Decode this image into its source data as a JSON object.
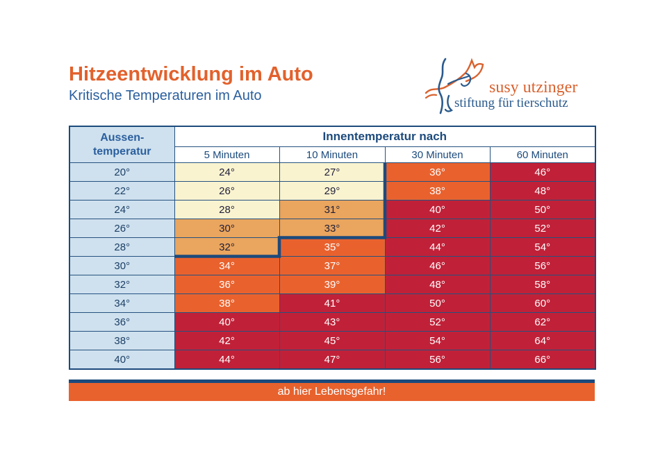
{
  "colors": {
    "accent_orange": "#e2612c",
    "brand_blue": "#2b5f9e",
    "navy_border": "#1c4a7c",
    "grid_line": "#24517f",
    "row_header_bg": "#cfe1ee",
    "level_cream": "#faf3d0",
    "level_tan": "#eaa55e",
    "level_orange": "#e9622e",
    "level_red": "#c02138",
    "danger_bar_bg": "#e8622d",
    "logo_orange": "#d8622f",
    "logo_blue": "#2a5a8c"
  },
  "header": {
    "title": "Hitzeentwicklung im Auto",
    "subtitle": "Kritische Temperaturen im Auto"
  },
  "logo": {
    "name": "susy utzinger",
    "tagline": "stiftung für tierschutz"
  },
  "table": {
    "corner_line1": "Aussen-",
    "corner_line2": "temperatur",
    "group_header": "Innentemperatur nach",
    "column_headers": [
      "5 Minuten",
      "10 Minuten",
      "30 Minuten",
      "60 Minuten"
    ],
    "rows": [
      {
        "outside": "20°",
        "cells": [
          {
            "value": "24°",
            "level": "cream"
          },
          {
            "value": "27°",
            "level": "cream"
          },
          {
            "value": "36°",
            "level": "orange"
          },
          {
            "value": "46°",
            "level": "red"
          }
        ]
      },
      {
        "outside": "22°",
        "cells": [
          {
            "value": "26°",
            "level": "cream"
          },
          {
            "value": "29°",
            "level": "cream"
          },
          {
            "value": "38°",
            "level": "orange"
          },
          {
            "value": "48°",
            "level": "red"
          }
        ]
      },
      {
        "outside": "24°",
        "cells": [
          {
            "value": "28°",
            "level": "cream"
          },
          {
            "value": "31°",
            "level": "tan"
          },
          {
            "value": "40°",
            "level": "red"
          },
          {
            "value": "50°",
            "level": "red"
          }
        ]
      },
      {
        "outside": "26°",
        "cells": [
          {
            "value": "30°",
            "level": "tan"
          },
          {
            "value": "33°",
            "level": "tan"
          },
          {
            "value": "42°",
            "level": "red"
          },
          {
            "value": "52°",
            "level": "red"
          }
        ]
      },
      {
        "outside": "28°",
        "cells": [
          {
            "value": "32°",
            "level": "tan"
          },
          {
            "value": "35°",
            "level": "orange"
          },
          {
            "value": "44°",
            "level": "red"
          },
          {
            "value": "54°",
            "level": "red"
          }
        ]
      },
      {
        "outside": "30°",
        "cells": [
          {
            "value": "34°",
            "level": "orange"
          },
          {
            "value": "37°",
            "level": "orange"
          },
          {
            "value": "46°",
            "level": "red"
          },
          {
            "value": "56°",
            "level": "red"
          }
        ]
      },
      {
        "outside": "32°",
        "cells": [
          {
            "value": "36°",
            "level": "orange"
          },
          {
            "value": "39°",
            "level": "orange"
          },
          {
            "value": "48°",
            "level": "red"
          },
          {
            "value": "58°",
            "level": "red"
          }
        ]
      },
      {
        "outside": "34°",
        "cells": [
          {
            "value": "38°",
            "level": "orange"
          },
          {
            "value": "41°",
            "level": "red"
          },
          {
            "value": "50°",
            "level": "red"
          },
          {
            "value": "60°",
            "level": "red"
          }
        ]
      },
      {
        "outside": "36°",
        "cells": [
          {
            "value": "40°",
            "level": "red"
          },
          {
            "value": "43°",
            "level": "red"
          },
          {
            "value": "52°",
            "level": "red"
          },
          {
            "value": "62°",
            "level": "red"
          }
        ]
      },
      {
        "outside": "38°",
        "cells": [
          {
            "value": "42°",
            "level": "red"
          },
          {
            "value": "45°",
            "level": "red"
          },
          {
            "value": "54°",
            "level": "red"
          },
          {
            "value": "64°",
            "level": "red"
          }
        ]
      },
      {
        "outside": "40°",
        "cells": [
          {
            "value": "44°",
            "level": "red"
          },
          {
            "value": "47°",
            "level": "red"
          },
          {
            "value": "56°",
            "level": "red"
          },
          {
            "value": "66°",
            "level": "red"
          }
        ]
      }
    ]
  },
  "footer": {
    "danger_label": "ab hier Lebensgefahr!"
  },
  "chart_data": {
    "type": "table",
    "title": "Hitzeentwicklung im Auto",
    "subtitle": "Kritische Temperaturen im Auto",
    "row_axis_label": "Aussen-temperatur",
    "column_group_label": "Innentemperatur nach",
    "columns": [
      "5 Minuten",
      "10 Minuten",
      "30 Minuten",
      "60 Minuten"
    ],
    "outside_temperature_c": [
      20,
      22,
      24,
      26,
      28,
      30,
      32,
      34,
      36,
      38,
      40
    ],
    "inside_temperature_c": [
      [
        24,
        27,
        36,
        46
      ],
      [
        26,
        29,
        38,
        48
      ],
      [
        28,
        31,
        40,
        50
      ],
      [
        30,
        33,
        42,
        52
      ],
      [
        32,
        35,
        44,
        54
      ],
      [
        34,
        37,
        46,
        56
      ],
      [
        36,
        39,
        48,
        58
      ],
      [
        38,
        41,
        50,
        60
      ],
      [
        40,
        43,
        52,
        62
      ],
      [
        42,
        45,
        54,
        64
      ],
      [
        44,
        47,
        56,
        66
      ]
    ],
    "annotation": "ab hier Lebensgefahr!",
    "legend_note": "Stepped navy line separates moderate (cream/tan, dark text) cells from dangerous (orange/red, white text) cells"
  }
}
